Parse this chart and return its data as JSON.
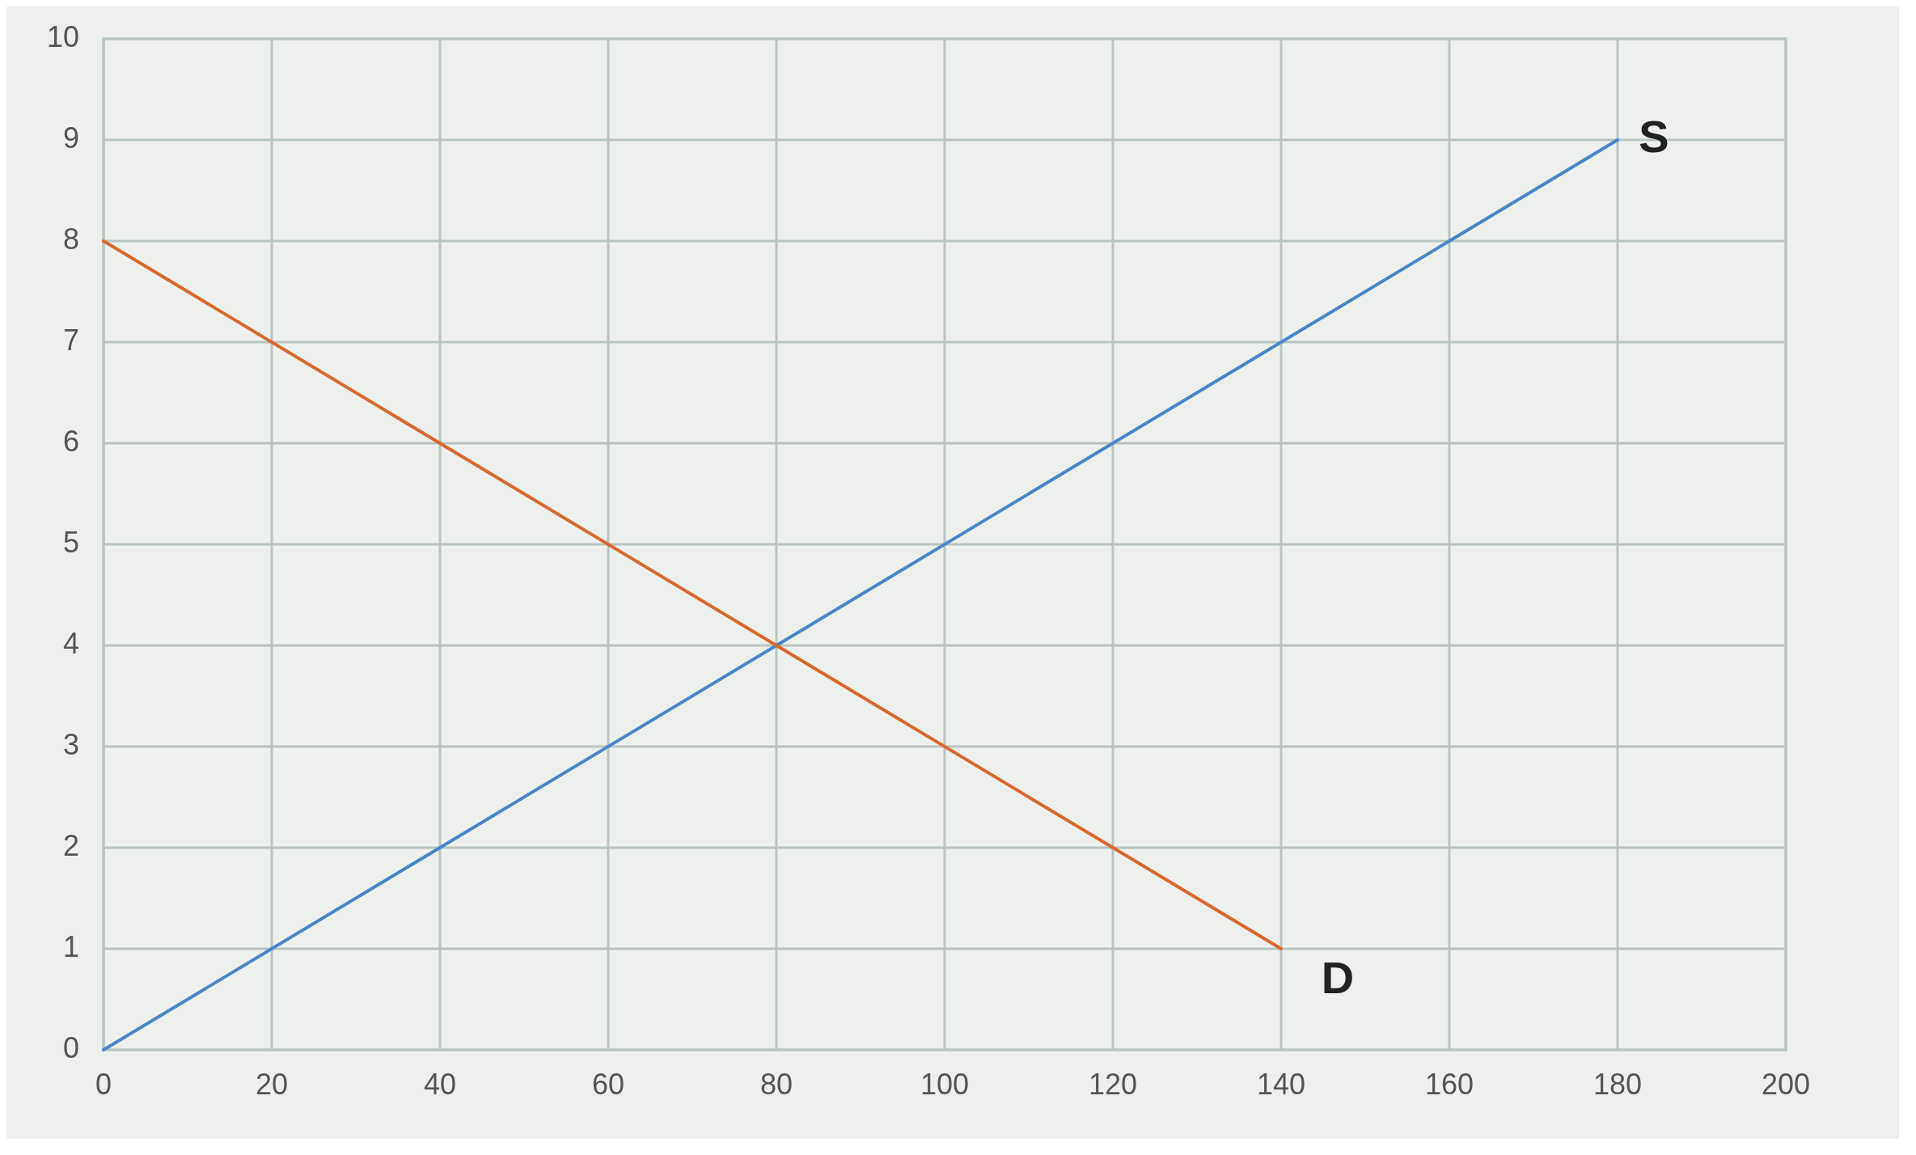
{
  "chart_data": {
    "type": "line",
    "series": [
      {
        "name": "S",
        "color": "#4a86c8",
        "x": [
          0,
          180
        ],
        "values": [
          0,
          9
        ]
      },
      {
        "name": "D",
        "color": "#d8682e",
        "x": [
          0,
          140
        ],
        "values": [
          8,
          1
        ]
      }
    ],
    "xlim": [
      0,
      200
    ],
    "ylim": [
      0,
      10
    ],
    "xticks": [
      0,
      20,
      40,
      60,
      80,
      100,
      120,
      140,
      160,
      180,
      200
    ],
    "yticks": [
      0,
      1,
      2,
      3,
      4,
      5,
      6,
      7,
      8,
      9,
      10
    ],
    "grid": true,
    "legend": false,
    "marker": "none",
    "line_style": "solid"
  }
}
